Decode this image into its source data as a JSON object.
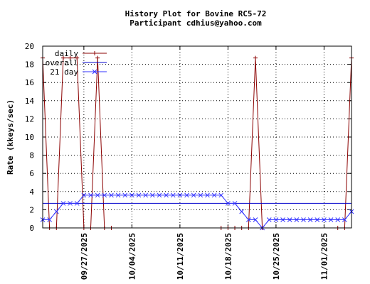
{
  "chart_data": {
    "type": "line",
    "title": "History Plot for Bovine RC5-72",
    "subtitle": "Participant cdhius@yahoo.com",
    "xlabel": "",
    "ylabel": "Rate (kkeys/sec)",
    "ylim": [
      0,
      20
    ],
    "yticks": [
      "0",
      "2",
      "4",
      "6",
      "8",
      "10",
      "12",
      "14",
      "16",
      "18",
      "20"
    ],
    "xlim": [
      "2025-09-21",
      "2025-11-05"
    ],
    "xticks": [
      "09/27/2025",
      "10/04/2025",
      "10/11/2025",
      "10/18/2025",
      "10/25/2025",
      "11/01/2025"
    ],
    "grid": true,
    "legend_position": "top-left",
    "colors": {
      "daily": "#8b0000",
      "overall": "#0000cc",
      "21day": "#3333ff"
    },
    "series": [
      {
        "name": "daily",
        "x": [
          "2025-09-21",
          "2025-09-22",
          "2025-09-23",
          "2025-09-24",
          "2025-09-25",
          "2025-09-26",
          "2025-09-27",
          "2025-09-28",
          "2025-09-29",
          "2025-09-30",
          "2025-10-01",
          "2025-10-17",
          "2025-10-18",
          "2025-10-19",
          "2025-10-20",
          "2025-10-21",
          "2025-10-22",
          "2025-10-23",
          "2025-11-03",
          "2025-11-04",
          "2025-11-05"
        ],
        "values": [
          18.7,
          0,
          0,
          18.7,
          18.7,
          18.7,
          0,
          0,
          18.7,
          0,
          0,
          0,
          0,
          0,
          0,
          0,
          18.7,
          0,
          0,
          0,
          18.7
        ]
      },
      {
        "name": "overall",
        "x": [
          "2025-09-21",
          "2025-11-05"
        ],
        "values": [
          2.7,
          2.7
        ]
      },
      {
        "name": "21 day",
        "x": [
          "2025-09-21",
          "2025-09-22",
          "2025-09-23",
          "2025-09-24",
          "2025-09-25",
          "2025-09-26",
          "2025-09-27",
          "2025-09-28",
          "2025-09-29",
          "2025-09-30",
          "2025-10-01",
          "2025-10-02",
          "2025-10-03",
          "2025-10-04",
          "2025-10-05",
          "2025-10-06",
          "2025-10-07",
          "2025-10-08",
          "2025-10-09",
          "2025-10-10",
          "2025-10-11",
          "2025-10-12",
          "2025-10-13",
          "2025-10-14",
          "2025-10-15",
          "2025-10-16",
          "2025-10-17",
          "2025-10-18",
          "2025-10-19",
          "2025-10-20",
          "2025-10-21",
          "2025-10-22",
          "2025-10-23",
          "2025-10-24",
          "2025-10-25",
          "2025-10-26",
          "2025-10-27",
          "2025-10-28",
          "2025-10-29",
          "2025-10-30",
          "2025-10-31",
          "2025-11-01",
          "2025-11-02",
          "2025-11-03",
          "2025-11-04",
          "2025-11-05"
        ],
        "values": [
          0.9,
          0.9,
          1.8,
          2.7,
          2.7,
          2.7,
          3.6,
          3.6,
          3.6,
          3.6,
          3.6,
          3.6,
          3.6,
          3.6,
          3.6,
          3.6,
          3.6,
          3.6,
          3.6,
          3.6,
          3.6,
          3.6,
          3.6,
          3.6,
          3.6,
          3.6,
          3.6,
          2.7,
          2.7,
          1.8,
          0.9,
          0.9,
          0,
          0.9,
          0.9,
          0.9,
          0.9,
          0.9,
          0.9,
          0.9,
          0.9,
          0.9,
          0.9,
          0.9,
          0.9,
          1.8
        ]
      }
    ]
  }
}
